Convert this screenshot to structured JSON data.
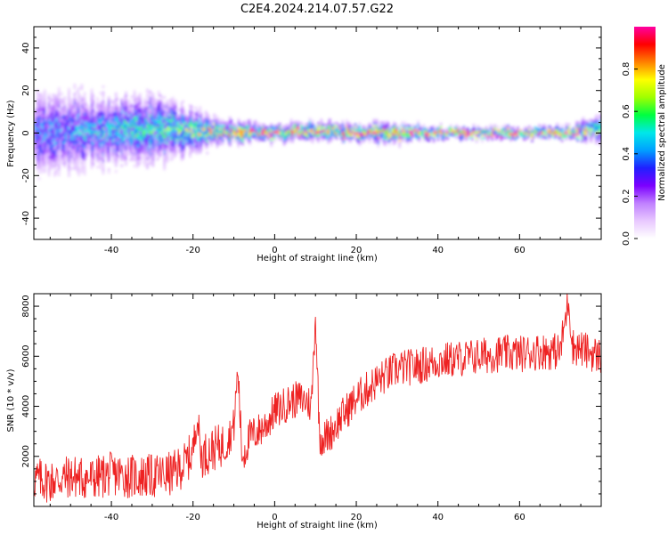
{
  "figure_title": "C2E4.2024.214.07.57.G22",
  "colors": {
    "snr_line": "#ee2222",
    "colormap": [
      "#ffffff",
      "#e8c8ff",
      "#c080ff",
      "#7b00ff",
      "#2020ff",
      "#00a0ff",
      "#00e8e8",
      "#00ff40",
      "#a0ff00",
      "#ffff00",
      "#ff8000",
      "#ff0000",
      "#ff00a0"
    ]
  },
  "chart_data": [
    {
      "type": "heatmap",
      "xlabel": "Height of straight line (km)",
      "ylabel": "Frequency (Hz)",
      "xlim": [
        -59,
        80
      ],
      "ylim": [
        -50,
        50
      ],
      "xticks": [
        -40,
        -20,
        0,
        20,
        40,
        60
      ],
      "yticks": [
        -40,
        -20,
        0,
        20,
        40
      ],
      "colorbar": {
        "label": "Normalized spectral amplitude",
        "range": [
          0,
          1
        ],
        "ticks": [
          0.0,
          0.2,
          0.4,
          0.6,
          0.8
        ]
      },
      "profile": {
        "x": [
          -58,
          -50,
          -40,
          -30,
          -25,
          -20,
          -15,
          -10,
          0,
          10,
          20,
          30,
          40,
          50,
          60,
          70,
          78
        ],
        "center_hz": [
          0,
          1,
          1,
          2,
          2,
          1,
          1,
          0,
          0,
          1,
          0,
          0,
          0,
          0,
          0,
          0,
          2
        ],
        "spread_hz": [
          14,
          14,
          13,
          12,
          10,
          7,
          5,
          4,
          3,
          3,
          3,
          3,
          2,
          2,
          2,
          2,
          4
        ],
        "peak_amplitude": [
          0.35,
          0.4,
          0.45,
          0.5,
          0.55,
          0.6,
          0.7,
          0.8,
          0.85,
          0.85,
          0.85,
          0.9,
          0.9,
          0.9,
          0.9,
          0.9,
          0.7
        ]
      }
    },
    {
      "type": "line",
      "xlabel": "Height of straight line (km)",
      "ylabel": "SNR (10 * v/v)",
      "xlim": [
        -59,
        80
      ],
      "ylim": [
        0,
        8500
      ],
      "xticks": [
        -40,
        -20,
        0,
        20,
        40,
        60
      ],
      "yticks": [
        2000,
        4000,
        6000,
        8000
      ],
      "series": [
        {
          "x": [
            -59,
            -55,
            -50,
            -45,
            -40,
            -35,
            -30,
            -25,
            -22,
            -20,
            -19,
            -18,
            -15,
            -12,
            -10,
            -9,
            -8,
            -6,
            -4,
            -2,
            0,
            2,
            4,
            6,
            8,
            9,
            10,
            11,
            12,
            14,
            16,
            20,
            25,
            30,
            35,
            40,
            45,
            50,
            55,
            60,
            65,
            70,
            72,
            73,
            75,
            78,
            80
          ],
          "values": [
            1100,
            1000,
            1200,
            1100,
            1300,
            1200,
            1200,
            1300,
            1700,
            2200,
            3700,
            2000,
            2300,
            2500,
            3200,
            5500,
            2000,
            2800,
            3000,
            3300,
            3800,
            4000,
            4200,
            4300,
            4200,
            4000,
            7700,
            2800,
            2700,
            3000,
            3500,
            4300,
            5000,
            5500,
            5600,
            5800,
            5900,
            6000,
            6100,
            6100,
            6200,
            6200,
            8300,
            6400,
            6300,
            6100,
            6000
          ]
        }
      ]
    }
  ]
}
